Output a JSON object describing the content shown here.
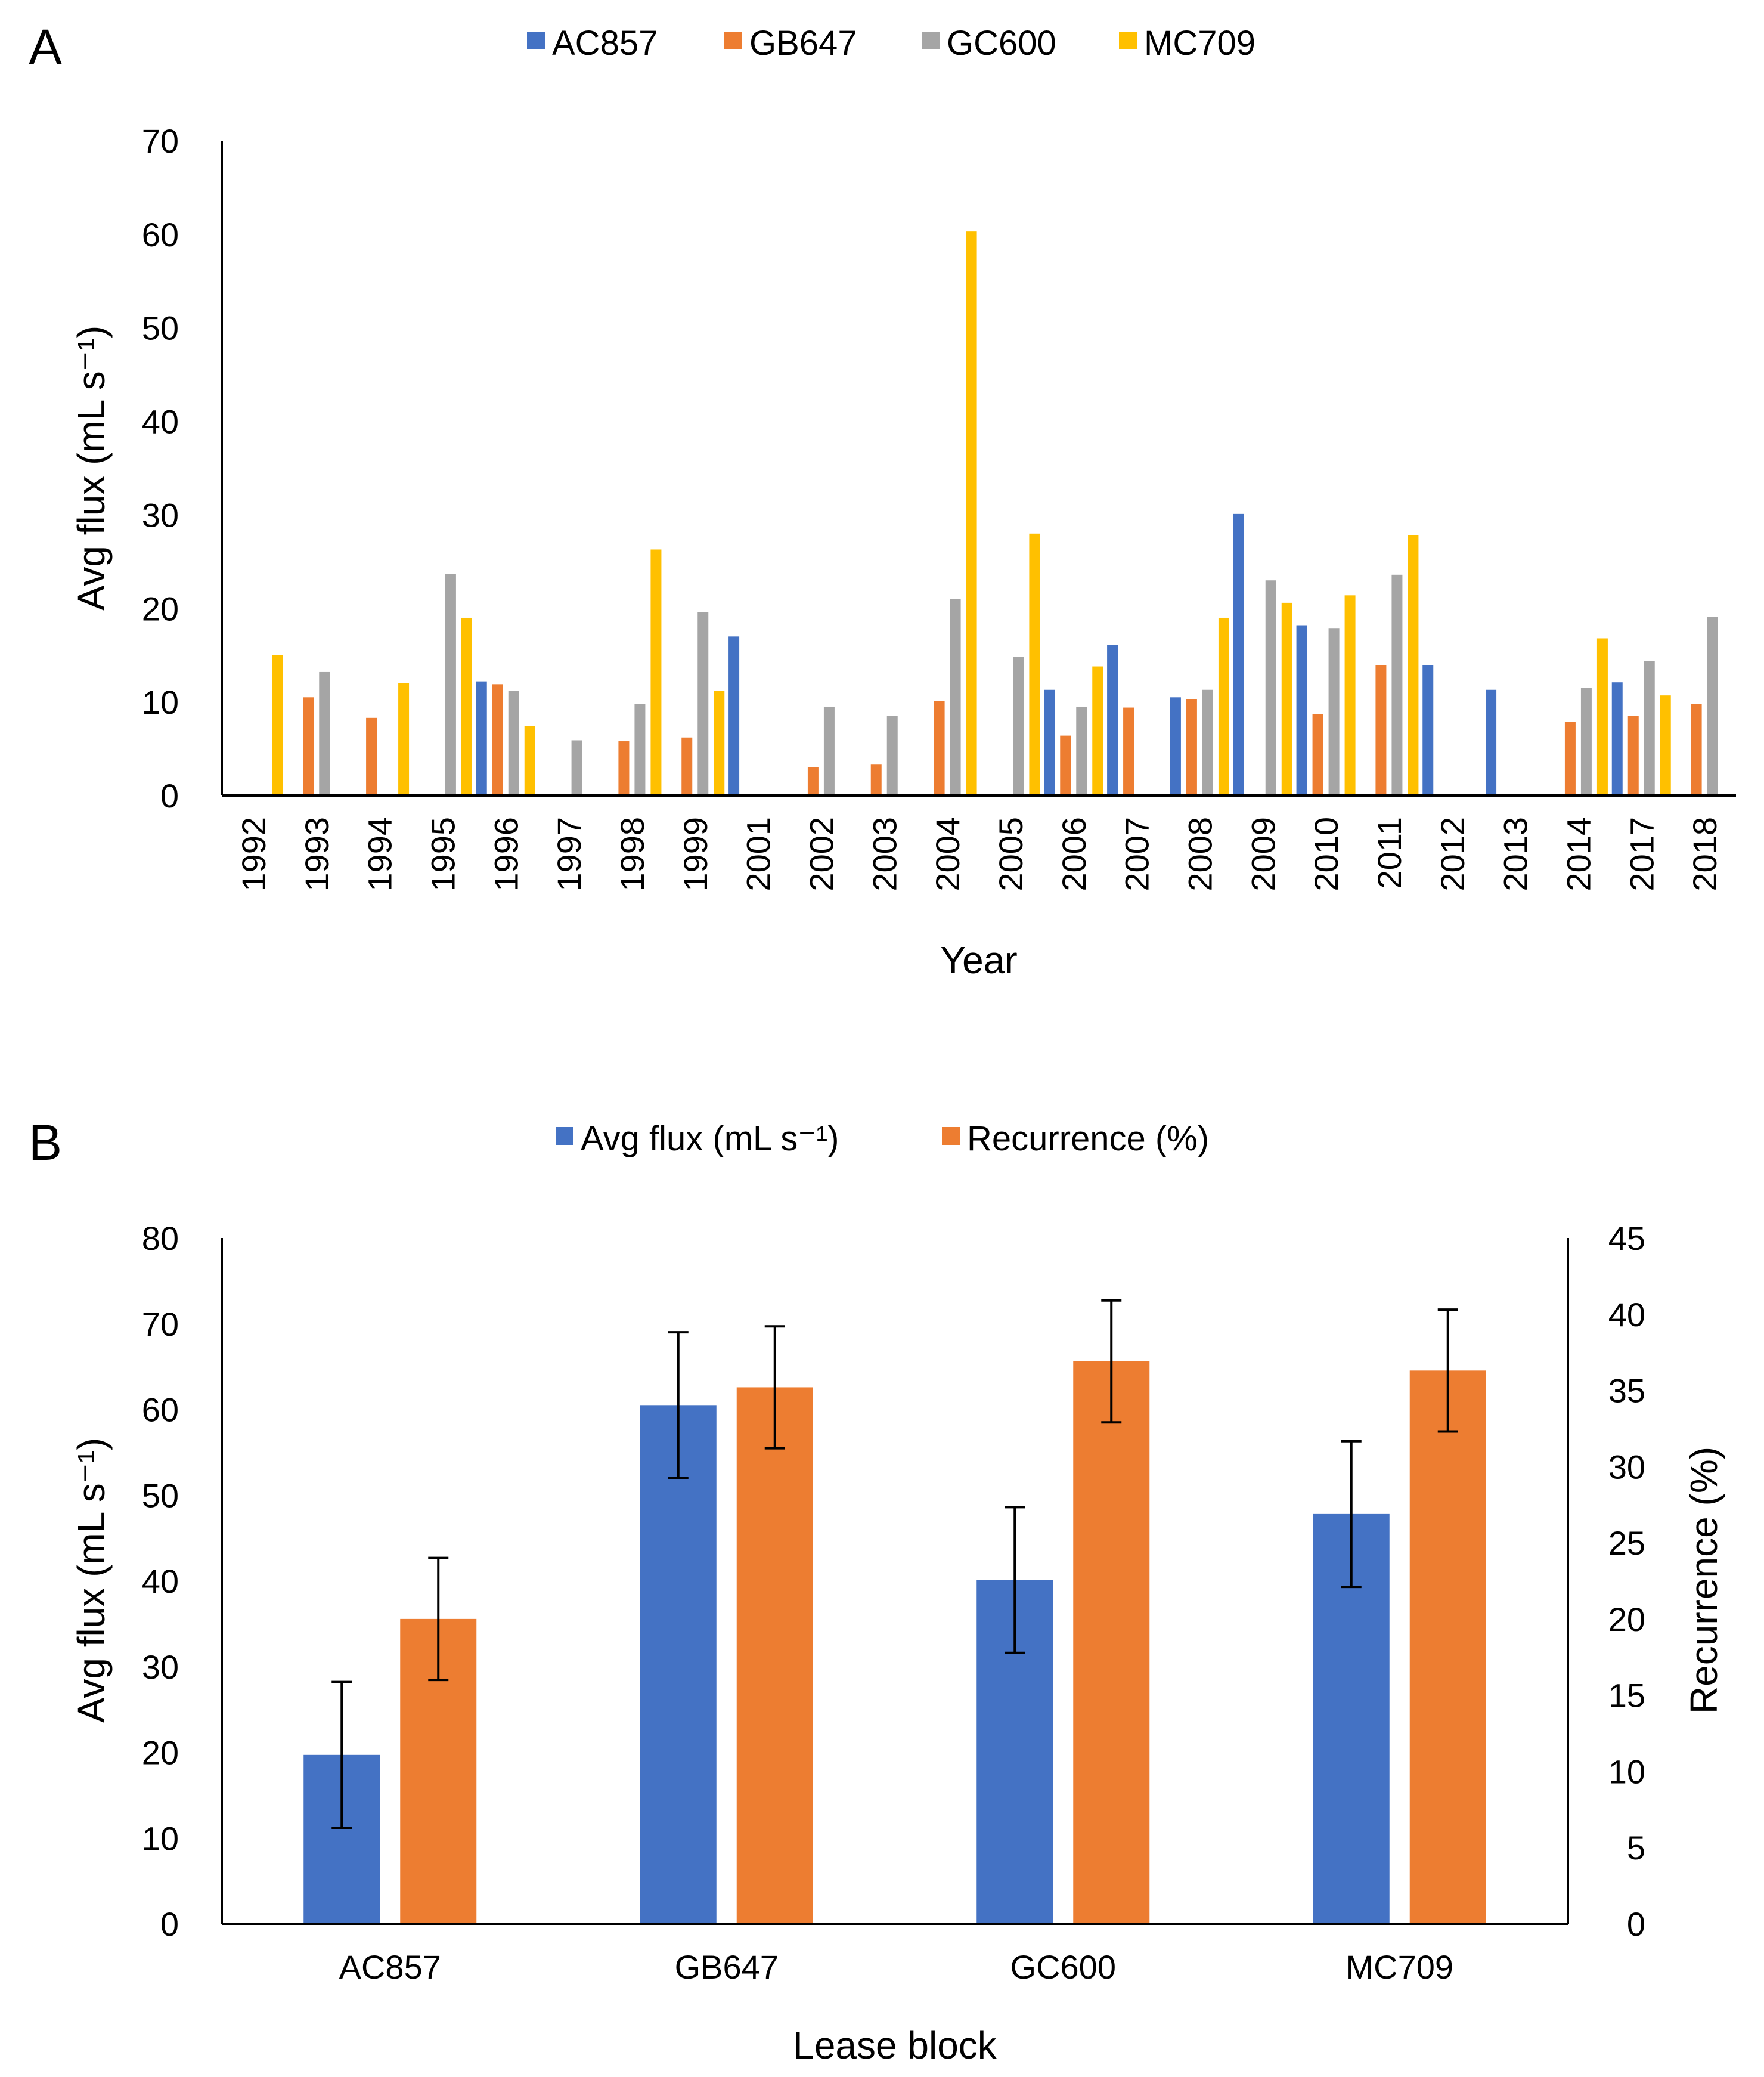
{
  "chart_data": [
    {
      "panel": "A",
      "type": "bar",
      "xlabel": "Year",
      "ylabel": "Avg flux (mL s⁻¹)",
      "ylim": [
        0,
        70
      ],
      "yticks": [
        0,
        10,
        20,
        30,
        40,
        50,
        60,
        70
      ],
      "legend_position": "top",
      "categories": [
        "1992",
        "1993",
        "1994",
        "1995",
        "1996",
        "1997",
        "1998",
        "1999",
        "2001",
        "2002",
        "2003",
        "2004",
        "2005",
        "2006",
        "2007",
        "2008",
        "2009",
        "2010",
        "2011",
        "2012",
        "2013",
        "2014",
        "2017",
        "2018"
      ],
      "series": [
        {
          "name": "AC857",
          "color": "#4472C4",
          "values": [
            null,
            null,
            null,
            null,
            12.2,
            null,
            null,
            null,
            17.0,
            null,
            null,
            null,
            null,
            11.3,
            16.1,
            10.5,
            30.1,
            18.2,
            null,
            13.9,
            11.3,
            null,
            12.1,
            null
          ]
        },
        {
          "name": "GB647",
          "color": "#ED7D31",
          "values": [
            null,
            10.5,
            8.3,
            null,
            11.9,
            null,
            5.8,
            6.2,
            null,
            3.0,
            3.3,
            10.1,
            null,
            6.4,
            9.4,
            10.3,
            null,
            8.7,
            13.9,
            null,
            null,
            7.9,
            8.5,
            9.8
          ]
        },
        {
          "name": "GC600",
          "color": "#A5A5A5",
          "values": [
            null,
            13.2,
            null,
            23.7,
            11.2,
            5.9,
            9.8,
            19.6,
            null,
            9.5,
            8.5,
            21.0,
            14.8,
            9.5,
            null,
            11.3,
            23.0,
            17.9,
            23.6,
            null,
            null,
            11.5,
            14.4,
            19.1
          ]
        },
        {
          "name": "MC709",
          "color": "#FFC000",
          "values": [
            15.0,
            null,
            12.0,
            19.0,
            7.4,
            null,
            26.3,
            11.2,
            null,
            null,
            null,
            60.3,
            28.0,
            13.8,
            null,
            19.0,
            20.6,
            21.4,
            27.8,
            null,
            null,
            16.8,
            10.7,
            null
          ]
        }
      ]
    },
    {
      "panel": "B",
      "type": "bar",
      "xlabel": "Lease block",
      "ylabel": "Avg flux (mL s⁻¹)",
      "y2label": "Recurrence (%)",
      "ylim": [
        0,
        80
      ],
      "yticks": [
        0,
        10,
        20,
        30,
        40,
        50,
        60,
        70,
        80
      ],
      "y2lim": [
        0,
        45
      ],
      "y2ticks": [
        0,
        5,
        10,
        15,
        20,
        25,
        30,
        35,
        40,
        45
      ],
      "legend_position": "top",
      "categories": [
        "AC857",
        "GB647",
        "GC600",
        "MC709"
      ],
      "series": [
        {
          "name": "Avg flux (mL s⁻¹)",
          "axis": "left",
          "color": "#4472C4",
          "values": [
            19.7,
            60.5,
            40.1,
            47.8
          ],
          "error": [
            8.5,
            8.5,
            8.5,
            8.5
          ]
        },
        {
          "name": "Recurrence (%)",
          "axis": "right",
          "color": "#ED7D31",
          "values": [
            20.0,
            35.2,
            36.9,
            36.3
          ],
          "error": [
            4.0,
            4.0,
            4.0,
            4.0
          ]
        }
      ]
    }
  ]
}
